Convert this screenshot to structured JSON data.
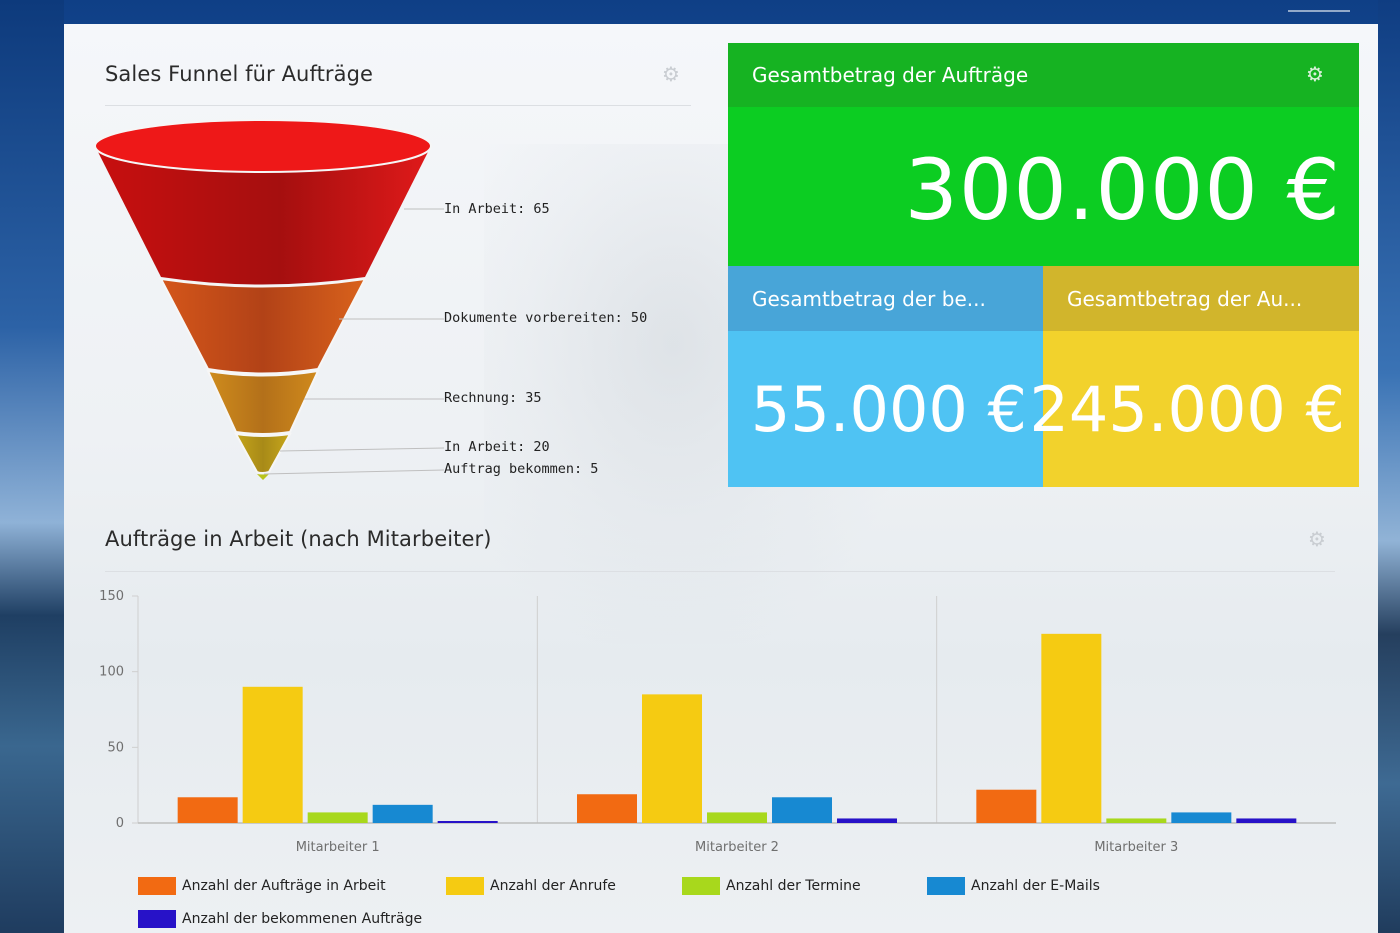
{
  "funnel_widget": {
    "title": "Sales Funnel für Aufträge",
    "gear_icon": "gear-icon",
    "stages": [
      {
        "label": "In Arbeit: 65",
        "value": 65,
        "color": "#e81717"
      },
      {
        "label": "Dokumente vorbereiten: 50",
        "value": 50,
        "color": "#d5541a"
      },
      {
        "label": "Rechnung: 35",
        "value": 35,
        "color": "#cf8a1c"
      },
      {
        "label": "In Arbeit: 20",
        "value": 20,
        "color": "#c2a61a"
      },
      {
        "label": "Auftrag bekommen: 5",
        "value": 5,
        "color": "#b9c41a"
      }
    ]
  },
  "total_widget": {
    "title": "Gesamtbetrag der Aufträge",
    "value": "300.000 €",
    "header_color": "#16b322",
    "body_color": "#0ccd22"
  },
  "tile_left": {
    "title": "Gesamtbetrag der be...",
    "value": "55.000 €",
    "header_color": "#48a5d8",
    "body_color": "#4fc3f3"
  },
  "tile_right": {
    "title": "Gesamtbetrag der Au...",
    "value": "245.000 €",
    "header_color": "#d1b52c",
    "body_color": "#f2d22c"
  },
  "bar_widget": {
    "title": "Aufträge in Arbeit (nach Mitarbeiter)",
    "gear_icon": "gear-icon"
  },
  "chart_data": {
    "type": "bar",
    "categories": [
      "Mitarbeiter 1",
      "Mitarbeiter 2",
      "Mitarbeiter 3"
    ],
    "series": [
      {
        "name": "Anzahl der Aufträge in Arbeit",
        "color": "#f26a12",
        "values": [
          17,
          19,
          22
        ]
      },
      {
        "name": "Anzahl der Anrufe",
        "color": "#f5cb12",
        "values": [
          90,
          85,
          125
        ]
      },
      {
        "name": "Anzahl der Termine",
        "color": "#a8d81c",
        "values": [
          7,
          7,
          3
        ]
      },
      {
        "name": "Anzahl der E-Mails",
        "color": "#1789d2",
        "values": [
          12,
          17,
          7
        ]
      },
      {
        "name": "Anzahl der bekommenen Aufträge",
        "color": "#2712c8",
        "values": [
          1,
          3,
          3
        ]
      }
    ],
    "yticks": [
      "0",
      "50",
      "100",
      "150"
    ],
    "ylim": [
      0,
      150
    ],
    "legend_position": "bottom"
  }
}
